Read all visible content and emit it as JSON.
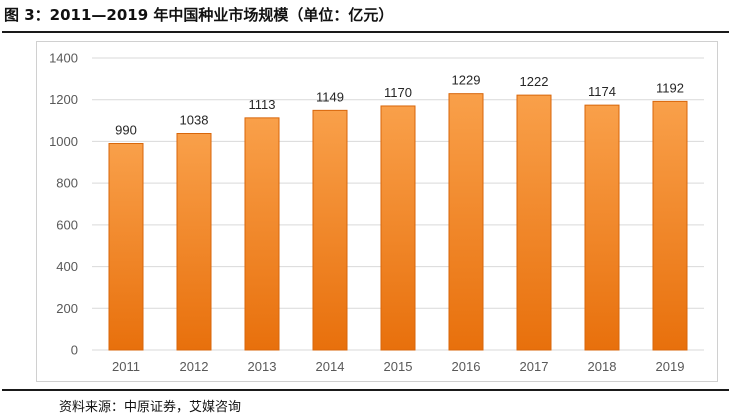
{
  "header": {
    "title": "图 3：2011—2019 年中国种业市场规模（单位：亿元）"
  },
  "footer": {
    "source": "资料来源：中原证券，艾媒咨询"
  },
  "colors": {
    "bar_top": "#f9a04a",
    "bar_bottom": "#e8700c",
    "bar_edge": "#d8660a",
    "gridline": "#d9d9d9",
    "axis_text": "#595959",
    "label_text": "#262626"
  },
  "chart_data": {
    "type": "bar",
    "categories": [
      "2011",
      "2012",
      "2013",
      "2014",
      "2015",
      "2016",
      "2017",
      "2018",
      "2019"
    ],
    "values": [
      990,
      1038,
      1113,
      1149,
      1170,
      1229,
      1222,
      1174,
      1192
    ],
    "data_labels": [
      "990",
      "1038",
      "1113",
      "1149",
      "1170",
      "1229",
      "1222",
      "1174",
      "1192"
    ],
    "ylim": [
      0,
      1400
    ],
    "yticks": [
      0,
      200,
      400,
      600,
      800,
      1000,
      1200,
      1400
    ],
    "grid": true,
    "legend": "none",
    "title": "",
    "xlabel": "",
    "ylabel": ""
  }
}
